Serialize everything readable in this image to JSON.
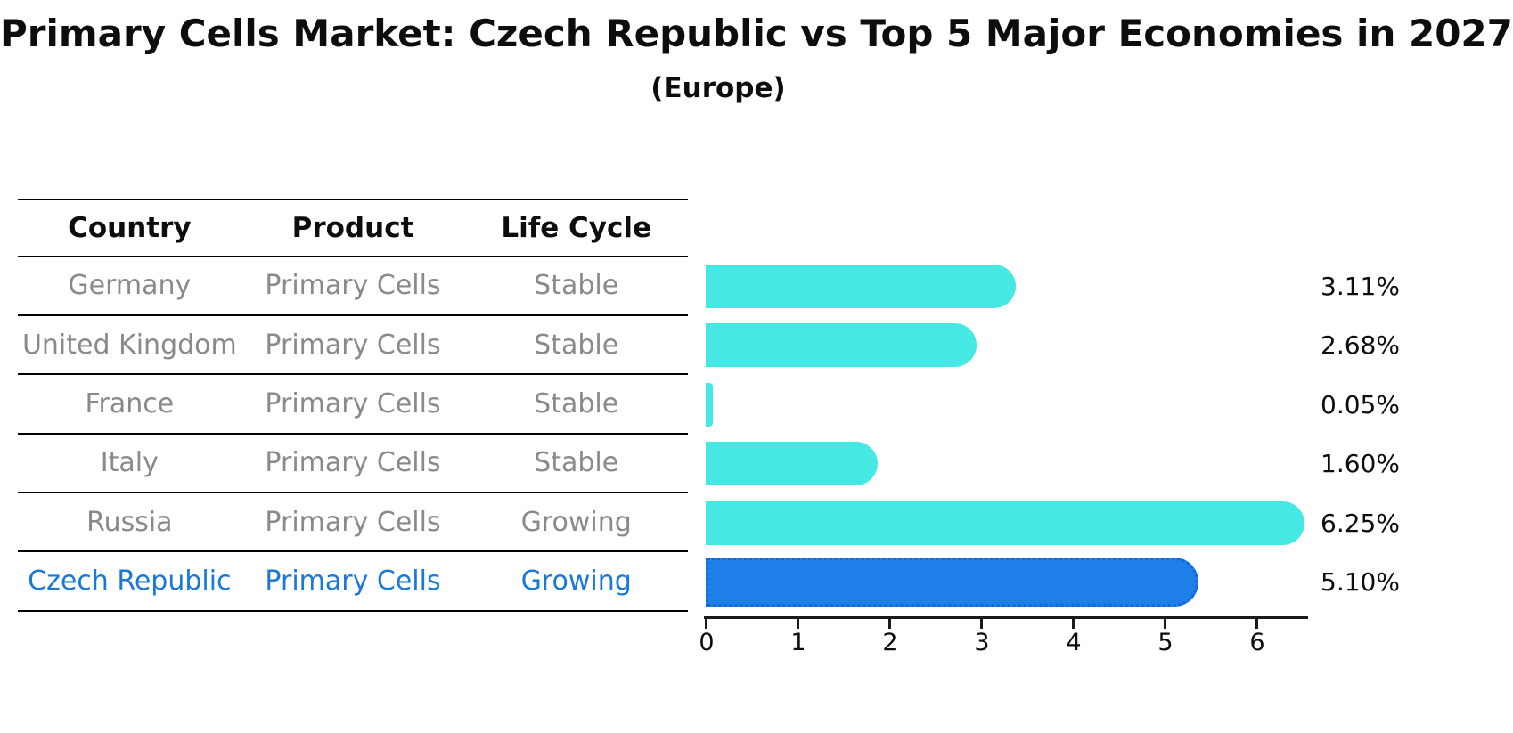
{
  "header": {
    "title": "Primary Cells Market: Czech Republic vs Top 5 Major Economies in 2027",
    "subtitle": "(Europe)"
  },
  "table": {
    "headers": [
      "Country",
      "Product",
      "Life Cycle"
    ],
    "rows": [
      {
        "country": "Germany",
        "product": "Primary Cells",
        "life_cycle": "Stable"
      },
      {
        "country": "United Kingdom",
        "product": "Primary Cells",
        "life_cycle": "Stable"
      },
      {
        "country": "France",
        "product": "Primary Cells",
        "life_cycle": "Stable"
      },
      {
        "country": "Italy",
        "product": "Primary Cells",
        "life_cycle": "Stable"
      },
      {
        "country": "Russia",
        "product": "Primary Cells",
        "life_cycle": "Growing"
      },
      {
        "country": "Czech Republic",
        "product": "Primary Cells",
        "life_cycle": "Growing"
      }
    ]
  },
  "chart_data": {
    "type": "bar",
    "orientation": "horizontal",
    "title": "Primary Cells Market: Czech Republic vs Top 5 Major Economies in 2027",
    "subtitle": "(Europe)",
    "categories": [
      "Germany",
      "United Kingdom",
      "France",
      "Italy",
      "Russia",
      "Czech Republic"
    ],
    "values": [
      3.11,
      2.68,
      0.05,
      1.6,
      6.25,
      5.1
    ],
    "value_labels": [
      "3.11%",
      "2.68%",
      "0.05%",
      "1.60%",
      "6.25%",
      "5.10%"
    ],
    "x_ticks": [
      "0",
      "1",
      "2",
      "3",
      "4",
      "5",
      "6"
    ],
    "xlim": [
      0,
      6.55
    ],
    "grid": false,
    "legend": "none",
    "highlight_index": 5,
    "unit": "%"
  },
  "colors": {
    "bar": "#45E8E2",
    "highlight_bar": "#1E7FE8",
    "highlight_border": "#1467D2",
    "highlight_text": "#1C78D6",
    "row_text": "#8A8A8A",
    "axis": "#1A1A1A",
    "background": "#FFFFFF"
  }
}
